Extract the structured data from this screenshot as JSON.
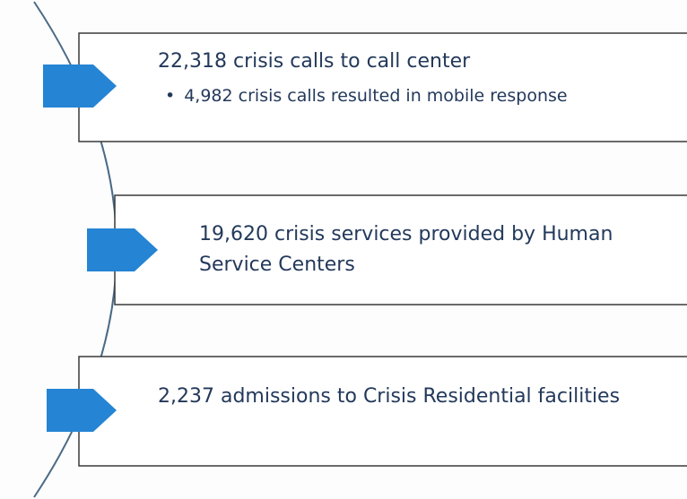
{
  "items": [
    {
      "text": "22,318 crisis calls to call center",
      "bullets": [
        "4,982 crisis calls resulted in mobile response"
      ]
    },
    {
      "text": "19,620 crisis services provided by Human Service Centers",
      "bullets": []
    },
    {
      "text": "2,237 admissions to Crisis Residential facilities",
      "bullets": []
    }
  ]
}
